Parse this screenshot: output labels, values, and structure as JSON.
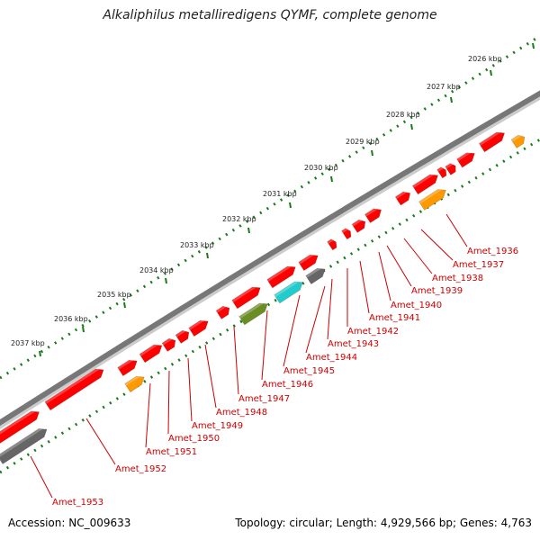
{
  "title": "Alkaliphilus metalliredigens QYMF, complete genome",
  "accession": "Accession: NC_009633",
  "footer": "Topology: circular; Length: 4,929,566 bp; Genes: 4,763",
  "colors": {
    "backbone": "#777777",
    "ticks": "#1a7a1a",
    "gene_label": "#cc0000",
    "gene_red": "#ff0000",
    "gene_orange": "#ff9900",
    "gene_gray": "#666666",
    "gene_cyan": "#22cccc",
    "gene_olive": "#6b8e23"
  },
  "scale_ticks": [
    "2026 kbp",
    "2027 kbp",
    "2028 kbp",
    "2029 kbp",
    "2030 kbp",
    "2031 kbp",
    "2032 kbp",
    "2033 kbp",
    "2034 kbp",
    "2035 kbp",
    "2036 kbp",
    "2037 kbp"
  ],
  "gene_labels": [
    "Amet_1936",
    "Amet_1937",
    "Amet_1938",
    "Amet_1939",
    "Amet_1940",
    "Amet_1941",
    "Amet_1942",
    "Amet_1943",
    "Amet_1944",
    "Amet_1945",
    "Amet_1946",
    "Amet_1947",
    "Amet_1948",
    "Amet_1949",
    "Amet_1950",
    "Amet_1951",
    "Amet_1952",
    "Amet_1953"
  ]
}
